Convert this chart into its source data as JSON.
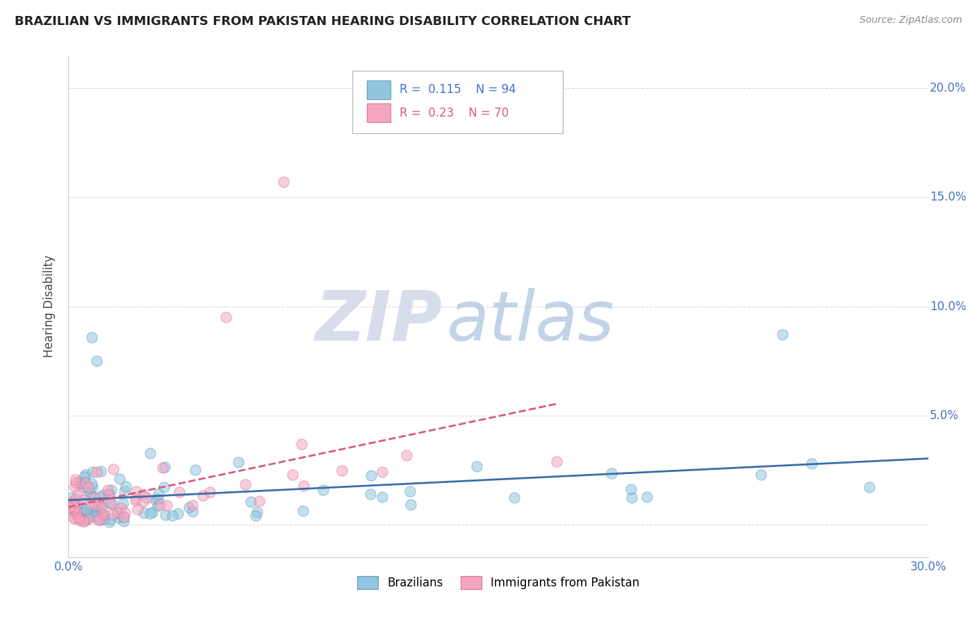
{
  "title": "BRAZILIAN VS IMMIGRANTS FROM PAKISTAN HEARING DISABILITY CORRELATION CHART",
  "source": "Source: ZipAtlas.com",
  "ylabel": "Hearing Disability",
  "xlim": [
    0.0,
    0.3
  ],
  "ylim": [
    -0.015,
    0.215
  ],
  "xticks": [
    0.0,
    0.05,
    0.1,
    0.15,
    0.2,
    0.25,
    0.3
  ],
  "xtick_labels": [
    "0.0%",
    "",
    "",
    "",
    "",
    "",
    "30.0%"
  ],
  "yticks": [
    0.0,
    0.05,
    0.1,
    0.15,
    0.2
  ],
  "ytick_labels_right": [
    "",
    "5.0%",
    "10.0%",
    "15.0%",
    "20.0%"
  ],
  "blue_R": 0.115,
  "blue_N": 94,
  "pink_R": 0.23,
  "pink_N": 70,
  "blue_color": "#92c5de",
  "pink_color": "#f4a6c0",
  "blue_edge_color": "#5b9ec9",
  "pink_edge_color": "#e07098",
  "blue_line_color": "#3a6ea8",
  "pink_line_color": "#d45b80",
  "watermark_zip": "ZIP",
  "watermark_atlas": "atlas",
  "watermark_zip_color": "#d0d8e8",
  "watermark_atlas_color": "#b8cce4",
  "background_color": "#ffffff",
  "grid_color": "#d9d9d9",
  "tick_color": "#4472c4",
  "title_color": "#222222",
  "source_color": "#888888",
  "legend_text_blue_color": "#4472c4",
  "legend_text_pink_color": "#d45b80"
}
